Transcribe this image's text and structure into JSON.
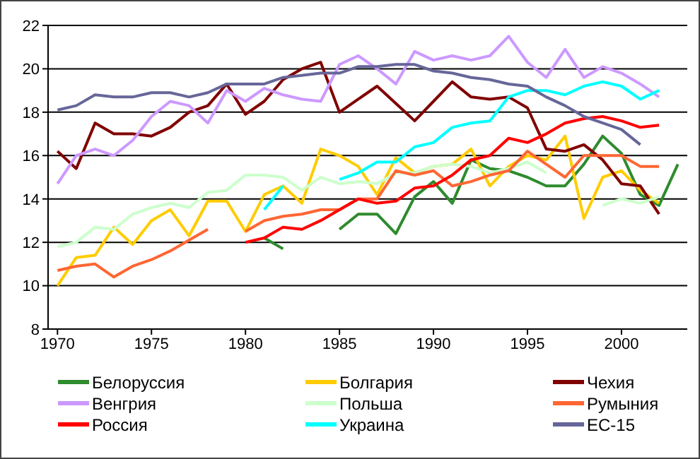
{
  "chart_data": {
    "type": "line",
    "x": [
      1970,
      1971,
      1972,
      1973,
      1974,
      1975,
      1976,
      1977,
      1978,
      1979,
      1980,
      1981,
      1982,
      1983,
      1984,
      1985,
      1986,
      1987,
      1988,
      1989,
      1990,
      1991,
      1992,
      1993,
      1994,
      1995,
      1996,
      1997,
      1998,
      1999,
      2000,
      2001,
      2002,
      2003
    ],
    "xlim": [
      1969.5,
      2003.5
    ],
    "xticks": [
      1970,
      1975,
      1980,
      1985,
      1990,
      1995,
      2000
    ],
    "ylim": [
      8,
      22
    ],
    "yticks": [
      8,
      10,
      12,
      14,
      16,
      18,
      20,
      22
    ],
    "grid": "y",
    "legend": "bottom",
    "marker": "none",
    "line_style": "solid",
    "series": [
      {
        "name": "Белоруссия",
        "color": "#2e8b2e",
        "values": [
          null,
          null,
          null,
          null,
          null,
          null,
          null,
          null,
          null,
          null,
          null,
          12.2,
          11.7,
          null,
          null,
          12.6,
          13.3,
          13.3,
          12.4,
          14.1,
          14.8,
          13.8,
          15.8,
          15.4,
          15.3,
          15.0,
          14.6,
          14.6,
          15.6,
          16.9,
          16.1,
          14.2,
          13.7,
          15.6
        ]
      },
      {
        "name": "Болгария",
        "color": "#ffcc00",
        "values": [
          10.0,
          11.3,
          11.4,
          12.7,
          11.9,
          13.0,
          13.5,
          12.3,
          13.9,
          13.9,
          12.5,
          14.2,
          14.6,
          13.8,
          16.3,
          16.0,
          15.5,
          14.2,
          15.9,
          15.2,
          15.5,
          15.6,
          16.3,
          14.6,
          15.5,
          16.0,
          15.8,
          16.9,
          13.1,
          15.0,
          15.3,
          14.4,
          13.8,
          null
        ]
      },
      {
        "name": "Чехия",
        "color": "#800000",
        "values": [
          16.2,
          15.4,
          17.5,
          17.0,
          17.0,
          16.9,
          17.3,
          18.0,
          18.3,
          19.3,
          17.9,
          18.5,
          19.5,
          20.0,
          20.3,
          18.0,
          18.6,
          19.2,
          18.4,
          17.6,
          18.5,
          19.4,
          18.7,
          18.6,
          18.7,
          18.2,
          16.3,
          16.2,
          16.5,
          15.8,
          14.7,
          14.6,
          13.3,
          null
        ]
      },
      {
        "name": "Венгрия",
        "color": "#cc99ff",
        "values": [
          14.7,
          16.0,
          16.3,
          16.0,
          16.7,
          17.8,
          18.5,
          18.3,
          17.5,
          19.0,
          18.5,
          19.1,
          18.8,
          18.6,
          18.5,
          20.2,
          20.6,
          20.0,
          19.3,
          20.8,
          20.4,
          20.6,
          20.4,
          20.6,
          21.5,
          20.3,
          19.6,
          20.9,
          19.6,
          20.1,
          19.8,
          19.3,
          18.7,
          null
        ]
      },
      {
        "name": "Польша",
        "color": "#ccffcc",
        "values": [
          11.8,
          12.0,
          12.7,
          12.6,
          13.3,
          13.6,
          13.8,
          13.6,
          14.3,
          14.4,
          15.1,
          15.1,
          15.0,
          14.4,
          15.0,
          14.7,
          14.8,
          14.7,
          15.2,
          15.2,
          15.5,
          15.6,
          15.5,
          15.2,
          15.4,
          15.7,
          15.2,
          null,
          null,
          13.7,
          14.0,
          13.8,
          14.1,
          null
        ]
      },
      {
        "name": "Румыния",
        "color": "#ff6633",
        "values": [
          10.7,
          10.9,
          11.0,
          10.4,
          10.9,
          11.2,
          11.6,
          12.1,
          12.6,
          null,
          12.5,
          13.0,
          13.2,
          13.3,
          13.5,
          13.5,
          14.0,
          14.0,
          15.3,
          15.1,
          15.3,
          14.6,
          14.8,
          15.1,
          15.3,
          16.2,
          15.6,
          15.0,
          16.0,
          16.0,
          16.0,
          15.5,
          15.5,
          null
        ]
      },
      {
        "name": "Россия",
        "color": "#ff0000",
        "values": [
          null,
          null,
          null,
          null,
          null,
          null,
          null,
          null,
          null,
          null,
          12.0,
          12.2,
          12.7,
          12.6,
          13.0,
          13.5,
          14.0,
          13.8,
          13.9,
          14.5,
          14.6,
          15.1,
          15.8,
          16.0,
          16.8,
          16.6,
          17.0,
          17.5,
          17.7,
          17.8,
          17.6,
          17.3,
          17.4,
          null
        ]
      },
      {
        "name": "Украина",
        "color": "#00ffff",
        "values": [
          null,
          null,
          null,
          null,
          null,
          null,
          null,
          null,
          null,
          null,
          null,
          13.5,
          14.6,
          null,
          null,
          14.9,
          15.2,
          15.7,
          15.7,
          16.4,
          16.6,
          17.3,
          17.5,
          17.6,
          18.7,
          19.0,
          19.0,
          18.8,
          19.2,
          19.4,
          19.2,
          18.6,
          19.0,
          null
        ]
      },
      {
        "name": "ЕС-15",
        "color": "#666699",
        "values": [
          18.1,
          18.3,
          18.8,
          18.7,
          18.7,
          18.9,
          18.9,
          18.7,
          18.9,
          19.3,
          19.3,
          19.3,
          19.6,
          19.7,
          19.8,
          19.8,
          20.1,
          20.1,
          20.2,
          20.2,
          19.9,
          19.8,
          19.6,
          19.5,
          19.3,
          19.2,
          18.7,
          18.3,
          17.8,
          17.5,
          17.2,
          16.5,
          null,
          null
        ]
      }
    ]
  }
}
